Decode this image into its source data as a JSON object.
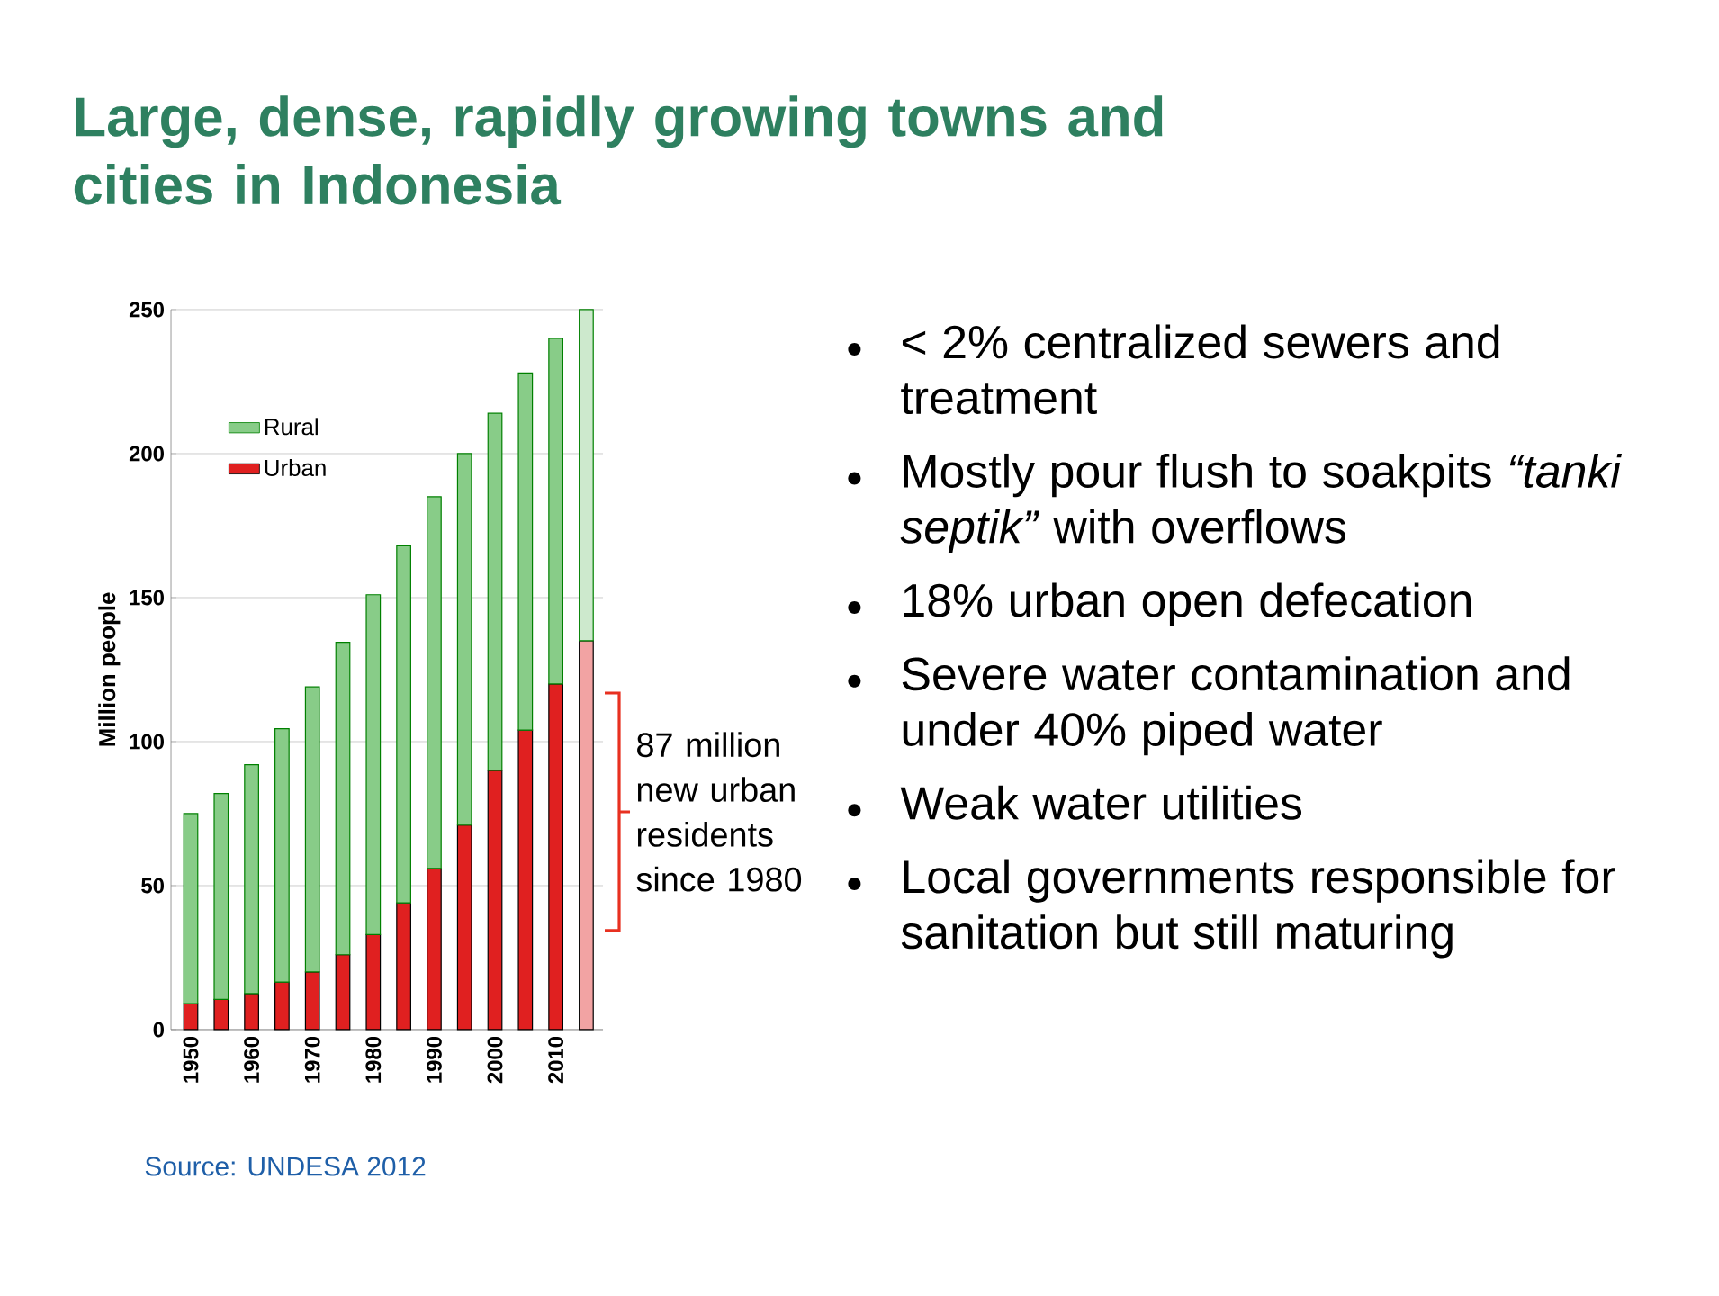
{
  "chart_data": [
    {
      "type": "bar",
      "stacked": true,
      "title": "Large, dense, rapidly growing towns and cities in Indonesia",
      "ylabel": "Million people",
      "categories": [
        "1950",
        null,
        "1960",
        null,
        "1970",
        null,
        "1980",
        null,
        "1990",
        null,
        "2000",
        null,
        "2010",
        null
      ],
      "series": [
        {
          "name": "Urban",
          "color": "#e02020",
          "colors": [
            "#e02020",
            "#e02020",
            "#e02020",
            "#e02020",
            "#e02020",
            "#e02020",
            "#e02020",
            "#e02020",
            "#e02020",
            "#e02020",
            "#e02020",
            "#e02020",
            "#e02020",
            "#f2a3a3"
          ],
          "values": [
            9,
            10.5,
            12.5,
            16.5,
            20,
            26,
            33,
            44,
            56,
            71,
            90,
            104,
            120,
            135
          ]
        },
        {
          "name": "Rural",
          "color": "#88cc88",
          "colors": [
            "#88cc88",
            "#88cc88",
            "#88cc88",
            "#88cc88",
            "#88cc88",
            "#88cc88",
            "#88cc88",
            "#88cc88",
            "#88cc88",
            "#88cc88",
            "#88cc88",
            "#88cc88",
            "#88cc88",
            "#cde9cd"
          ],
          "values": [
            66,
            71.5,
            79.5,
            88,
            99,
            108.5,
            118,
            124,
            129,
            129,
            124,
            124,
            120,
            115
          ]
        }
      ],
      "ylim": [
        0,
        250
      ],
      "yticks": [
        0,
        50,
        100,
        150,
        200,
        250
      ],
      "grid": "y",
      "legend": "top left",
      "annotations": [
        "87 million new urban residents since 1980",
        "Source:  UNDESA 2012"
      ]
    },
    {
      "type": "other",
      "annotations": [
        "< 2% centralized sewers and treatment",
        "Mostly pour flush to soakpits *“tanki septik”* with overflows",
        "18% urban open defecation",
        "Severe water contamination and under 40% piped water",
        "Weak water utilities",
        "Local governments responsible for sanitation but still maturing"
      ]
    }
  ]
}
